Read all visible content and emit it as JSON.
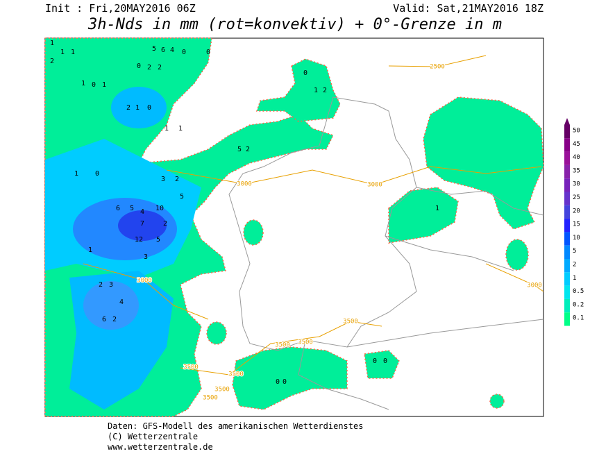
{
  "header": {
    "init": "Init : Fri,20MAY2016 06Z",
    "valid": "Valid: Sat,21MAY2016 18Z",
    "title": "3h-Nds in mm (rot=konvektiv) + 0°-Grenze in m"
  },
  "colorbar": {
    "labels": [
      50,
      45,
      40,
      35,
      30,
      25,
      20,
      15,
      10,
      5,
      2,
      1,
      0.5,
      0.2,
      0.1
    ],
    "colors": [
      "#660066",
      "#880088",
      "#991199",
      "#8822aa",
      "#7722bb",
      "#6633cc",
      "#4444dd",
      "#2222ff",
      "#0055ff",
      "#0088ff",
      "#00aaff",
      "#00ccff",
      "#00e6ee",
      "#00eebb",
      "#00ff88"
    ]
  },
  "contour_labels": [
    "2500",
    "3000",
    "3000",
    "3000",
    "3000",
    "3500",
    "3500",
    "3500",
    "3500",
    "3500",
    "3500",
    "3500"
  ],
  "map_labels": [
    "1",
    "5",
    "6",
    "4",
    "0",
    "0",
    "2",
    "1",
    "1",
    "0",
    "2",
    "2",
    "1",
    "0",
    "1",
    "2",
    "1",
    "0",
    "1",
    "1",
    "5",
    "2",
    "1",
    "0",
    "3",
    "2",
    "5",
    "6",
    "5",
    "4",
    "7",
    "2",
    "10",
    "12",
    "5",
    "3",
    "1",
    "2",
    "3",
    "4",
    "2",
    "6",
    "0",
    "1",
    "2",
    "1",
    "0",
    "0",
    "0",
    "0"
  ],
  "footer": {
    "line1": "Daten: GFS-Modell des amerikanischen Wetterdienstes",
    "line2": "(C) Wetterzentrale",
    "line3": "www.wetterzentrale.de"
  }
}
